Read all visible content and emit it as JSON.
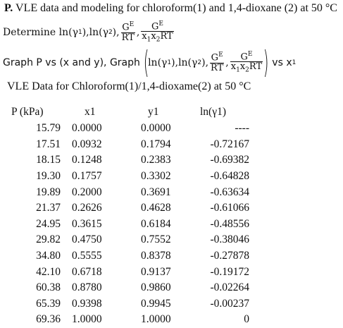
{
  "problem": {
    "label": "P.",
    "title": "VLE data and modeling for chloroform(1) and 1,4-dioxane (2) at 50 °C",
    "determine_prefix": "Determine ln(γ",
    "graph_lead": "Graph P vs (x and y), Graph",
    "vs_label": "vs x",
    "sub1": "1",
    "sub2": "2",
    "ln_text": "ln(γ",
    "close_paren": "),",
    "comma": ",",
    "G": "G",
    "E": "E",
    "RT": "RT",
    "x": "x"
  },
  "table": {
    "title": "VLE Data for Chloroform(1)/1,4-dioxame(2) at 50 °C",
    "headers": [
      "P (kPa)",
      "x1",
      "y1",
      "ln(γ1)"
    ],
    "rows": [
      [
        "15.79",
        "0.0000",
        "0.0000",
        "----"
      ],
      [
        "17.51",
        "0.0932",
        "0.1794",
        "-0.72167"
      ],
      [
        "18.15",
        "0.1248",
        "0.2383",
        "-0.69382"
      ],
      [
        "19.30",
        "0.1757",
        "0.3302",
        "-0.64828"
      ],
      [
        "19.89",
        "0.2000",
        "0.3691",
        "-0.63634"
      ],
      [
        "21.37",
        "0.2626",
        "0.4628",
        "-0.61066"
      ],
      [
        "24.95",
        "0.3615",
        "0.6184",
        "-0.48556"
      ],
      [
        "29.82",
        "0.4750",
        "0.7552",
        "-0.38046"
      ],
      [
        "34.80",
        "0.5555",
        "0.8378",
        "-0.27878"
      ],
      [
        "42.10",
        "0.6718",
        "0.9137",
        "-0.19172"
      ],
      [
        "60.38",
        "0.8780",
        "0.9860",
        "-0.02264"
      ],
      [
        "65.39",
        "0.9398",
        "0.9945",
        "-0.00237"
      ],
      [
        "69.36",
        "1.0000",
        "1.0000",
        "0"
      ]
    ]
  }
}
